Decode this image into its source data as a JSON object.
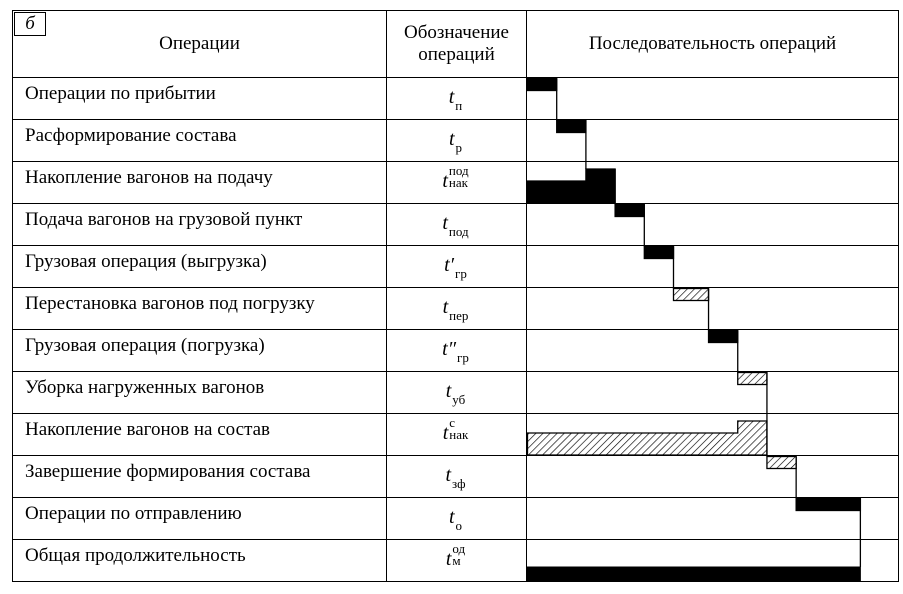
{
  "panel_label": "б",
  "headers": {
    "operations": "Операции",
    "designation": "Обозначение операций",
    "sequence": "Последовательность операций"
  },
  "rows": [
    {
      "name": "Операции по прибытии",
      "t": "t",
      "sub": "п",
      "sup": "",
      "prime": "",
      "bar": {
        "start": 0,
        "end": 1,
        "fill": "solid"
      }
    },
    {
      "name": "Расформирование состава",
      "t": "t",
      "sub": "р",
      "sup": "",
      "prime": "",
      "bar": {
        "start": 1,
        "end": 2,
        "fill": "solid"
      }
    },
    {
      "name": "Накопление вагонов на подачу",
      "t": "t",
      "sub": "нак",
      "sup": "под",
      "prime": "",
      "bar": {
        "start": 0,
        "end": 3,
        "fill": "solid",
        "stepped": true
      }
    },
    {
      "name": "Подача вагонов на грузовой пункт",
      "t": "t",
      "sub": "под",
      "sup": "",
      "prime": "",
      "bar": {
        "start": 3,
        "end": 4,
        "fill": "solid"
      }
    },
    {
      "name": "Грузовая операция (выгрузка)",
      "t": "t",
      "sub": "гр",
      "sup": "",
      "prime": "′",
      "bar": {
        "start": 4,
        "end": 5,
        "fill": "solid"
      }
    },
    {
      "name": "Перестановка вагонов под погрузку",
      "t": "t",
      "sub": "пер",
      "sup": "",
      "prime": "",
      "bar": {
        "start": 5,
        "end": 6.2,
        "fill": "hatched"
      }
    },
    {
      "name": "Грузовая операция (погрузка)",
      "t": "t",
      "sub": "гр",
      "sup": "",
      "prime": "″",
      "bar": {
        "start": 6.2,
        "end": 7.2,
        "fill": "solid"
      }
    },
    {
      "name": "Уборка нагруженных вагонов",
      "t": "t",
      "sub": "уб",
      "sup": "",
      "prime": "",
      "bar": {
        "start": 7.2,
        "end": 8.2,
        "fill": "hatched"
      }
    },
    {
      "name": "Накопление вагонов на состав",
      "t": "t",
      "sub": "нак",
      "sup": "с",
      "prime": "",
      "bar": {
        "start": 0,
        "end": 8.2,
        "fill": "hatched",
        "stepped": true
      }
    },
    {
      "name": "Завершение формирования состава",
      "t": "t",
      "sub": "зф",
      "sup": "",
      "prime": "",
      "bar": {
        "start": 8.2,
        "end": 9.2,
        "fill": "hatched"
      }
    },
    {
      "name": "Операции по отправлению",
      "t": "t",
      "sub": "о",
      "sup": "",
      "prime": "",
      "bar": {
        "start": 9.2,
        "end": 11.4,
        "fill": "solid"
      }
    },
    {
      "name": "Общая продолжительность",
      "t": "t",
      "sub": "м",
      "sup": "од",
      "prime": "",
      "bar": {
        "start": 0,
        "end": 11.4,
        "fill": "solid",
        "total": true
      }
    }
  ]
}
